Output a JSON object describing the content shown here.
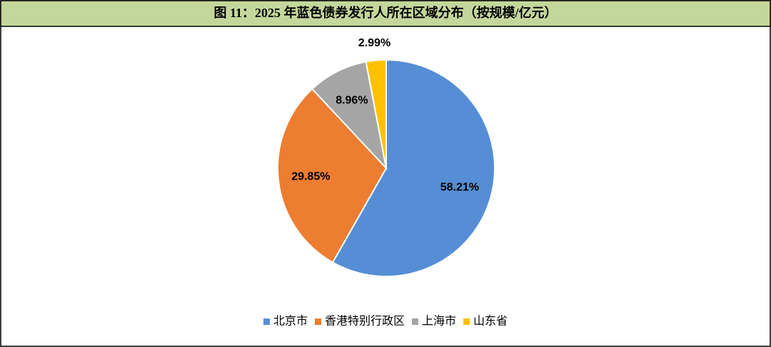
{
  "chart_data": {
    "type": "pie",
    "title": "图 11：2025 年蓝色债券发行人所在区域分布（按规模/亿元）",
    "categories": [
      "北京市",
      "香港特别行政区",
      "上海市",
      "山东省"
    ],
    "values": [
      58.21,
      29.85,
      8.96,
      2.99
    ],
    "value_labels": [
      "58.21%",
      "29.85%",
      "8.96%",
      "2.99%"
    ],
    "colors": [
      "#558ed5",
      "#ed7d31",
      "#a5a5a5",
      "#ffc000"
    ],
    "legend": "bottom"
  }
}
